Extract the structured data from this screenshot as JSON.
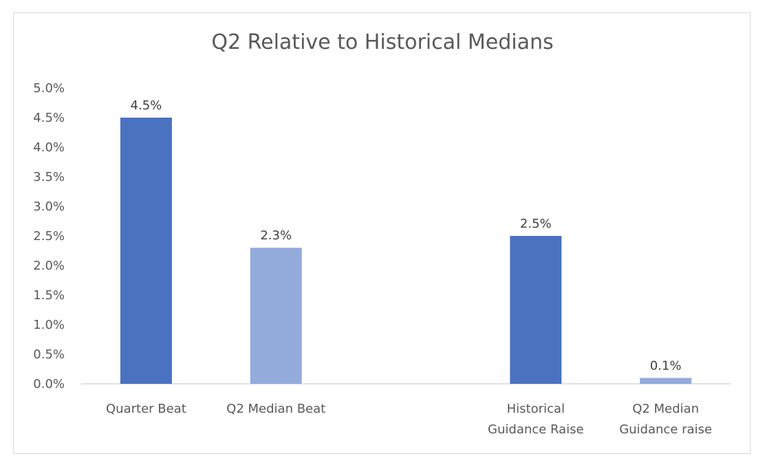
{
  "chart_data": {
    "type": "bar",
    "title": "Q2 Relative to Historical Medians",
    "categories": [
      [
        "Quarter Beat"
      ],
      [
        "Q2 Median Beat"
      ],
      [],
      [
        "Historical",
        "Guidance Raise"
      ],
      [
        "Q2 Median",
        "Guidance raise"
      ]
    ],
    "values": [
      4.5,
      2.3,
      null,
      2.5,
      0.1
    ],
    "data_labels": [
      "4.5%",
      "2.3%",
      "",
      "2.5%",
      "0.1%"
    ],
    "bar_colors": [
      "#4a72c0",
      "#93abdb",
      null,
      "#4a72c0",
      "#93abdb"
    ],
    "ylim": [
      0,
      5
    ],
    "yticks": [
      "0.0%",
      "0.5%",
      "1.0%",
      "1.5%",
      "2.0%",
      "2.5%",
      "3.0%",
      "3.5%",
      "4.0%",
      "4.5%",
      "5.0%"
    ],
    "xlabel": "",
    "ylabel": "",
    "grid": false,
    "legend": "none"
  }
}
